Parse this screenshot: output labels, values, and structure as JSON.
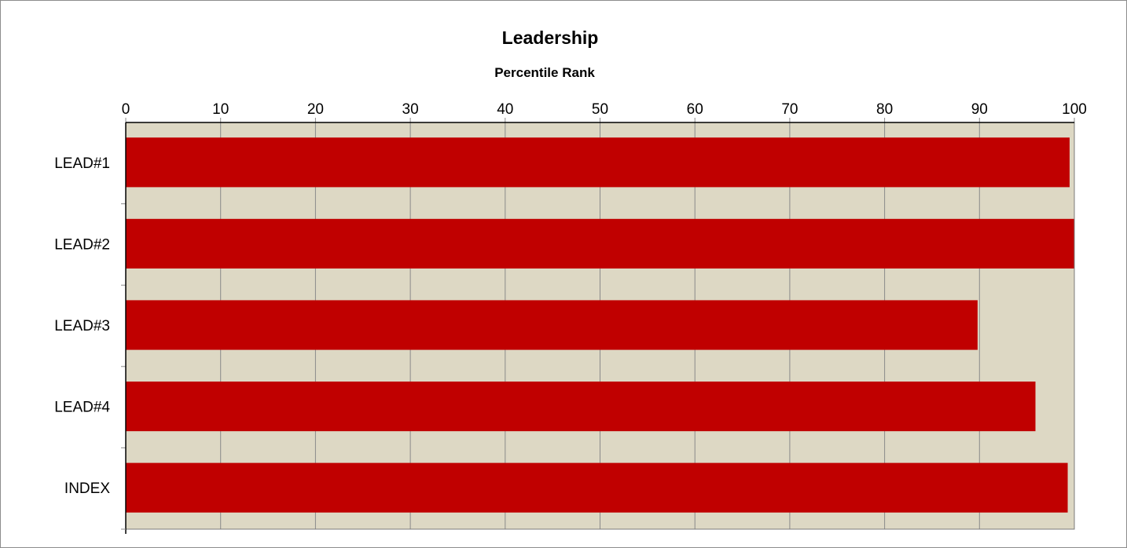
{
  "chart_data": {
    "type": "bar",
    "orientation": "horizontal",
    "title": "Leadership",
    "subtitle": "Percentile Rank",
    "xlim": [
      0,
      100
    ],
    "x_ticks": [
      "0",
      "10",
      "20",
      "30",
      "40",
      "50",
      "60",
      "70",
      "80",
      "90",
      "100"
    ],
    "categories": [
      "LEAD#1",
      "LEAD#2",
      "LEAD#3",
      "LEAD#4",
      "INDEX"
    ],
    "values": [
      99.5,
      100,
      89.8,
      95.9,
      99.3
    ],
    "bar_color": "#c00000",
    "plot_background": "#ddd8c4",
    "grid": true,
    "x_axis_position": "top"
  }
}
